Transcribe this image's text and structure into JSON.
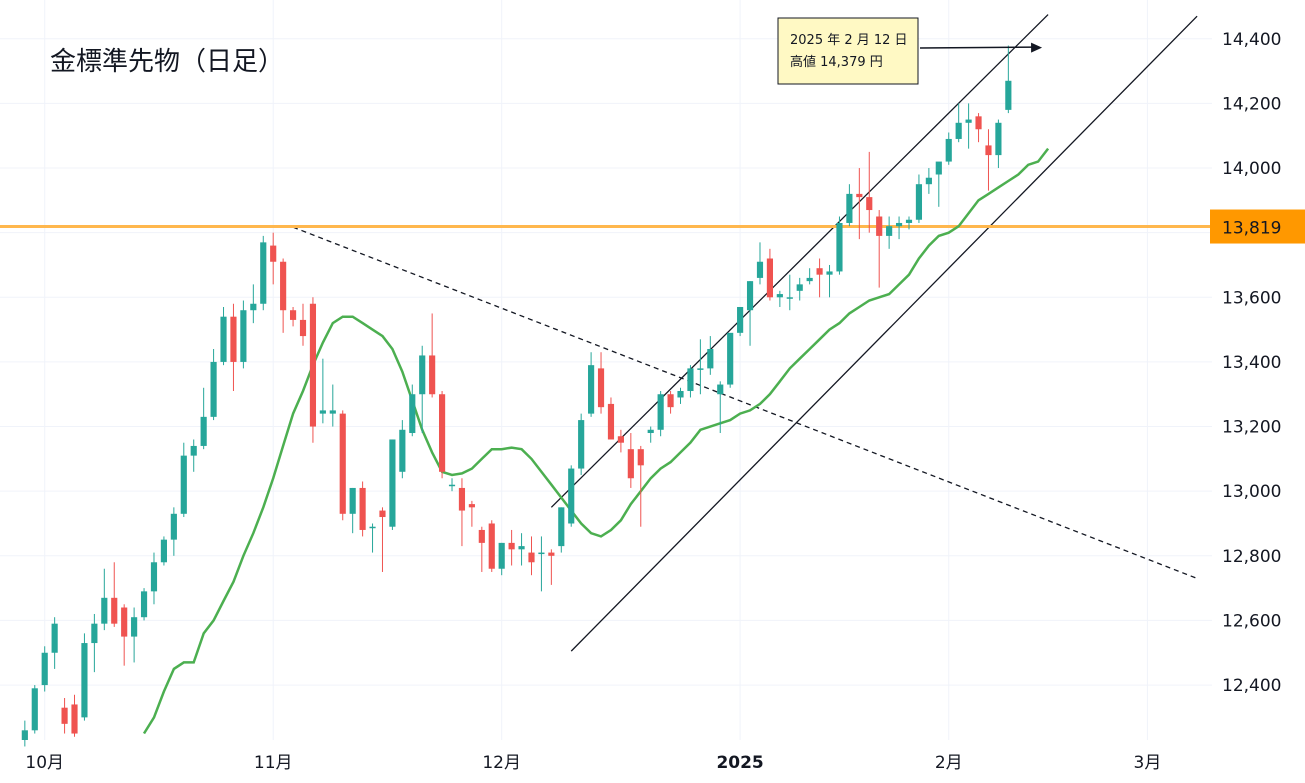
{
  "chart_data": {
    "type": "candlestick",
    "title": "金標準先物（日足）",
    "y_axis": {
      "position": "right",
      "ticks": [
        "12,400",
        "12,600",
        "12,800",
        "13,000",
        "13,200",
        "13,400",
        "13,600",
        "13,800",
        "14,000",
        "14,200",
        "14,400"
      ],
      "tick_values": [
        12400,
        12600,
        12800,
        13000,
        13200,
        13400,
        13600,
        13800,
        14000,
        14200,
        14400
      ],
      "ylim": [
        12230,
        14520
      ]
    },
    "x_axis": {
      "ticks": [
        {
          "label": "10月",
          "bar_index": 2
        },
        {
          "label": "11月",
          "bar_index": 25
        },
        {
          "label": "12月",
          "bar_index": 48
        },
        {
          "label": "2025",
          "bar_index": 72,
          "bold": true
        },
        {
          "label": "2月",
          "bar_index": 93
        },
        {
          "label": "3月",
          "bar_index": 113
        }
      ],
      "bar_range": [
        -2.5,
        119.5
      ]
    },
    "horizontal_line": {
      "value": 13819,
      "label": "13,819",
      "color": "#ffb74d",
      "label_color": "#ff9800"
    },
    "annotation": {
      "lines": [
        "2025 年 2 月 12 日",
        "高値  14,379 円"
      ],
      "target_bar": 103,
      "target_value": 14379
    },
    "colors": {
      "up": "#26a69a",
      "down": "#ef5350",
      "ma": "#4caf50",
      "grid": "#f0f3fa",
      "text": "#131722"
    },
    "trendlines": [
      {
        "name": "resistance-dashed",
        "style": "dashed",
        "from": {
          "bar": 27,
          "value": 13817
        },
        "to": {
          "bar": 118,
          "value": 12730
        }
      },
      {
        "name": "channel-upper",
        "style": "solid",
        "from": {
          "bar": 53,
          "value": 12950
        },
        "to": {
          "bar": 103,
          "value": 14475
        }
      },
      {
        "name": "channel-lower",
        "style": "solid",
        "from": {
          "bar": 55,
          "value": 12505
        },
        "to": {
          "bar": 118,
          "value": 14470
        }
      }
    ],
    "candles": [
      [
        12230,
        12290,
        12210,
        12260
      ],
      [
        12260,
        12400,
        12250,
        12390
      ],
      [
        12400,
        12520,
        12380,
        12500
      ],
      [
        12500,
        12610,
        12450,
        12590
      ],
      [
        12330,
        12360,
        12250,
        12280
      ],
      [
        12340,
        12370,
        12240,
        12250
      ],
      [
        12300,
        12560,
        12290,
        12530
      ],
      [
        12530,
        12620,
        12440,
        12590
      ],
      [
        12590,
        12760,
        12570,
        12670
      ],
      [
        12670,
        12780,
        12580,
        12590
      ],
      [
        12640,
        12650,
        12460,
        12550
      ],
      [
        12550,
        12640,
        12470,
        12610
      ],
      [
        12610,
        12700,
        12600,
        12690
      ],
      [
        12690,
        12810,
        12650,
        12780
      ],
      [
        12780,
        12860,
        12770,
        12850
      ],
      [
        12850,
        12950,
        12800,
        12930
      ],
      [
        12930,
        13150,
        12920,
        13110
      ],
      [
        13110,
        13160,
        13060,
        13140
      ],
      [
        13140,
        13320,
        13130,
        13230
      ],
      [
        13230,
        13440,
        13220,
        13400
      ],
      [
        13400,
        13570,
        13390,
        13540
      ],
      [
        13540,
        13580,
        13310,
        13400
      ],
      [
        13400,
        13590,
        13380,
        13560
      ],
      [
        13560,
        13640,
        13520,
        13580
      ],
      [
        13580,
        13790,
        13560,
        13770
      ],
      [
        13760,
        13800,
        13640,
        13710
      ],
      [
        13710,
        13720,
        13490,
        13560
      ],
      [
        13560,
        13570,
        13510,
        13530
      ],
      [
        13530,
        13580,
        13450,
        13480
      ],
      [
        13580,
        13600,
        13150,
        13200
      ],
      [
        13240,
        13410,
        13210,
        13250
      ],
      [
        13240,
        13330,
        13200,
        13250
      ],
      [
        13240,
        13250,
        12910,
        12930
      ],
      [
        12930,
        13010,
        12870,
        13010
      ],
      [
        13010,
        13030,
        12860,
        12880
      ],
      [
        12890,
        12900,
        12810,
        12890
      ],
      [
        12940,
        12950,
        12750,
        12920
      ],
      [
        12890,
        13160,
        12880,
        13160
      ],
      [
        13060,
        13220,
        13040,
        13190
      ],
      [
        13180,
        13330,
        13170,
        13300
      ],
      [
        13300,
        13450,
        13180,
        13420
      ],
      [
        13420,
        13550,
        13290,
        13300
      ],
      [
        13300,
        13310,
        13040,
        13060
      ],
      [
        13020,
        13040,
        13000,
        13020
      ],
      [
        13010,
        13040,
        12830,
        12940
      ],
      [
        12960,
        12970,
        12890,
        12950
      ],
      [
        12880,
        12890,
        12750,
        12840
      ],
      [
        12900,
        12910,
        12750,
        12760
      ],
      [
        12760,
        12840,
        12740,
        12840
      ],
      [
        12840,
        12880,
        12770,
        12820
      ],
      [
        12820,
        12870,
        12770,
        12830
      ],
      [
        12810,
        12860,
        12740,
        12780
      ],
      [
        12810,
        12860,
        12690,
        12810
      ],
      [
        12810,
        12820,
        12710,
        12800
      ],
      [
        12830,
        12950,
        12810,
        12950
      ],
      [
        12900,
        13080,
        12890,
        13070
      ],
      [
        13070,
        13240,
        13050,
        13220
      ],
      [
        13240,
        13430,
        13230,
        13390
      ],
      [
        13380,
        13430,
        13240,
        13260
      ],
      [
        13270,
        13290,
        13160,
        13160
      ],
      [
        13170,
        13190,
        13120,
        13150
      ],
      [
        13130,
        13180,
        13010,
        13040
      ],
      [
        13130,
        13140,
        12890,
        13080
      ],
      [
        13180,
        13200,
        13150,
        13190
      ],
      [
        13190,
        13310,
        13170,
        13300
      ],
      [
        13300,
        13310,
        13240,
        13260
      ],
      [
        13290,
        13320,
        13270,
        13310
      ],
      [
        13310,
        13390,
        13290,
        13380
      ],
      [
        13380,
        13470,
        13300,
        13380
      ],
      [
        13380,
        13480,
        13360,
        13440
      ],
      [
        13300,
        13340,
        13180,
        13330
      ],
      [
        13330,
        13480,
        13320,
        13490
      ],
      [
        13490,
        13570,
        13480,
        13570
      ],
      [
        13560,
        13650,
        13450,
        13650
      ],
      [
        13660,
        13770,
        13640,
        13710
      ],
      [
        13720,
        13750,
        13590,
        13600
      ],
      [
        13600,
        13620,
        13570,
        13610
      ],
      [
        13600,
        13670,
        13560,
        13600
      ],
      [
        13620,
        13660,
        13590,
        13640
      ],
      [
        13650,
        13690,
        13640,
        13660
      ],
      [
        13690,
        13720,
        13600,
        13670
      ],
      [
        13670,
        13700,
        13600,
        13680
      ],
      [
        13680,
        13850,
        13670,
        13830
      ],
      [
        13830,
        13950,
        13820,
        13920
      ],
      [
        13920,
        14000,
        13780,
        13910
      ],
      [
        13910,
        14050,
        13800,
        13870
      ],
      [
        13850,
        13870,
        13630,
        13790
      ],
      [
        13790,
        13850,
        13750,
        13820
      ],
      [
        13820,
        13850,
        13780,
        13830
      ],
      [
        13830,
        13850,
        13810,
        13840
      ],
      [
        13840,
        13980,
        13830,
        13950
      ],
      [
        13950,
        14000,
        13920,
        13970
      ],
      [
        13980,
        14010,
        13880,
        14020
      ],
      [
        14020,
        14110,
        14010,
        14090
      ],
      [
        14090,
        14200,
        14080,
        14140
      ],
      [
        14140,
        14200,
        14060,
        14150
      ],
      [
        14160,
        14170,
        14080,
        14120
      ],
      [
        14070,
        14120,
        13930,
        14040
      ],
      [
        14040,
        14150,
        14000,
        14140
      ],
      [
        14180,
        14379,
        14170,
        14270
      ]
    ],
    "candle_start_bar": 0,
    "ma": [
      [
        2,
        12250
      ],
      [
        3,
        12300
      ],
      [
        4,
        12380
      ],
      [
        5,
        12450
      ],
      [
        6,
        12470
      ],
      [
        7,
        12470
      ],
      [
        8,
        12560
      ],
      [
        9,
        12600
      ],
      [
        10,
        12660
      ],
      [
        11,
        12720
      ],
      [
        12,
        12800
      ],
      [
        13,
        12870
      ],
      [
        14,
        12950
      ],
      [
        15,
        13040
      ],
      [
        16,
        13140
      ],
      [
        17,
        13240
      ],
      [
        18,
        13310
      ],
      [
        19,
        13390
      ],
      [
        20,
        13460
      ],
      [
        21,
        13520
      ],
      [
        22,
        13540
      ],
      [
        23,
        13540
      ],
      [
        24,
        13520
      ],
      [
        25,
        13500
      ],
      [
        26,
        13480
      ],
      [
        27,
        13440
      ],
      [
        28,
        13370
      ],
      [
        29,
        13280
      ],
      [
        30,
        13190
      ],
      [
        31,
        13120
      ],
      [
        32,
        13060
      ],
      [
        33,
        13050
      ],
      [
        34,
        13055
      ],
      [
        35,
        13070
      ],
      [
        36,
        13100
      ],
      [
        37,
        13130
      ],
      [
        38,
        13130
      ],
      [
        39,
        13135
      ],
      [
        40,
        13130
      ],
      [
        41,
        13100
      ],
      [
        42,
        13060
      ],
      [
        43,
        13020
      ],
      [
        44,
        12980
      ],
      [
        45,
        12940
      ],
      [
        46,
        12900
      ],
      [
        47,
        12870
      ],
      [
        48,
        12860
      ],
      [
        49,
        12880
      ],
      [
        50,
        12910
      ],
      [
        51,
        12960
      ],
      [
        52,
        13000
      ],
      [
        53,
        13040
      ],
      [
        54,
        13070
      ],
      [
        55,
        13090
      ],
      [
        56,
        13120
      ],
      [
        57,
        13150
      ],
      [
        58,
        13190
      ],
      [
        59,
        13200
      ],
      [
        60,
        13210
      ],
      [
        61,
        13220
      ],
      [
        62,
        13240
      ],
      [
        63,
        13250
      ],
      [
        64,
        13270
      ],
      [
        65,
        13300
      ],
      [
        66,
        13340
      ],
      [
        67,
        13380
      ],
      [
        68,
        13410
      ],
      [
        69,
        13440
      ],
      [
        70,
        13470
      ],
      [
        71,
        13500
      ],
      [
        72,
        13520
      ],
      [
        73,
        13550
      ],
      [
        74,
        13570
      ],
      [
        75,
        13590
      ],
      [
        76,
        13600
      ],
      [
        77,
        13610
      ],
      [
        78,
        13640
      ],
      [
        79,
        13670
      ],
      [
        80,
        13720
      ],
      [
        81,
        13760
      ],
      [
        82,
        13790
      ],
      [
        83,
        13800
      ],
      [
        84,
        13820
      ],
      [
        85,
        13860
      ],
      [
        86,
        13900
      ],
      [
        87,
        13920
      ],
      [
        88,
        13940
      ],
      [
        89,
        13960
      ],
      [
        90,
        13980
      ],
      [
        91,
        14010
      ],
      [
        92,
        14020
      ],
      [
        93,
        14060
      ]
    ],
    "ma_start_bar": 10
  }
}
